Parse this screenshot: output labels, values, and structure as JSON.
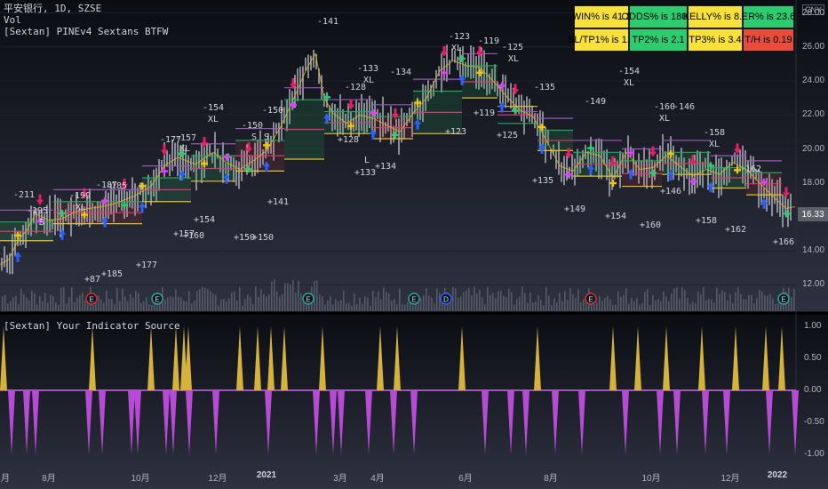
{
  "header": {
    "symbol_line": "平安银行, 1D, SZSE",
    "vol_label": "Vol",
    "strategy_label": "[Sextan] PINEv4 Sextans BTFW",
    "indicator_label": "[Sextan] Your Indicator Source"
  },
  "currency": "CNY",
  "last_price": "16.33",
  "stats": [
    {
      "text": "WIN% is 41.3",
      "color": "#f7e13a"
    },
    {
      "text": "ODDS% is 180.9",
      "color": "#2ecc71"
    },
    {
      "text": "KELLY% is 8.9",
      "color": "#f7e13a"
    },
    {
      "text": "ER% is 23.6",
      "color": "#2ecc71"
    },
    {
      "text": "SL/TP1% is 1.3",
      "color": "#f7e13a"
    },
    {
      "text": "TP2% is 2.1",
      "color": "#2ecc71"
    },
    {
      "text": "TP3% is 3.4",
      "color": "#f7e13a"
    },
    {
      "text": "T/H is 0.19",
      "color": "#e74c3c"
    }
  ],
  "price_axis": [
    "28.00",
    "26.00",
    "24.00",
    "22.00",
    "20.00",
    "18.00",
    "14.00",
    "12.00"
  ],
  "osc_axis": [
    "1.00",
    "0.50",
    "0.00",
    "-0.50",
    "-1.00"
  ],
  "time_axis": [
    {
      "label": "月",
      "bold": false
    },
    {
      "label": "8月",
      "bold": false
    },
    {
      "label": "10月",
      "bold": false
    },
    {
      "label": "12月",
      "bold": false
    },
    {
      "label": "2021",
      "bold": true
    },
    {
      "label": "3月",
      "bold": false
    },
    {
      "label": "4月",
      "bold": false
    },
    {
      "label": "6月",
      "bold": false
    },
    {
      "label": "8月",
      "bold": false
    },
    {
      "label": "10月",
      "bold": false
    },
    {
      "label": "12月",
      "bold": false
    },
    {
      "label": "2022",
      "bold": true
    }
  ],
  "event_badges": [
    "E",
    "E",
    "E",
    "E",
    "D",
    "E",
    "E"
  ],
  "trade_labels": [
    {
      "text": "-211"
    },
    {
      "text": "-195"
    },
    {
      "text": "S"
    },
    {
      "text": "-199"
    },
    {
      "text": "XL"
    },
    {
      "text": "-187"
    },
    {
      "text": "-185"
    },
    {
      "text": "-177"
    },
    {
      "text": "-157"
    },
    {
      "text": "XL"
    },
    {
      "text": "-154"
    },
    {
      "text": "XL"
    },
    {
      "text": "-150"
    },
    {
      "text": "-150"
    },
    {
      "text": "S"
    },
    {
      "text": "-141"
    },
    {
      "text": "-133"
    },
    {
      "text": "XL"
    },
    {
      "text": "-128"
    },
    {
      "text": "-134"
    },
    {
      "text": "-123"
    },
    {
      "text": "XL"
    },
    {
      "text": "-119"
    },
    {
      "text": "-125"
    },
    {
      "text": "XL"
    },
    {
      "text": "-135"
    },
    {
      "text": "-149"
    },
    {
      "text": "-154"
    },
    {
      "text": "XL"
    },
    {
      "text": "-160"
    },
    {
      "text": "XL"
    },
    {
      "text": "-146"
    },
    {
      "text": "-158"
    },
    {
      "text": "XL"
    },
    {
      "text": "-162"
    },
    {
      "text": "+87"
    },
    {
      "text": "+185"
    },
    {
      "text": "+177"
    },
    {
      "text": "+157"
    },
    {
      "text": "+160"
    },
    {
      "text": "+154"
    },
    {
      "text": "+150"
    },
    {
      "text": "+150"
    },
    {
      "text": "+141"
    },
    {
      "text": "+128"
    },
    {
      "text": "+133"
    },
    {
      "text": "+134"
    },
    {
      "text": "+123"
    },
    {
      "text": "+119"
    },
    {
      "text": "+125"
    },
    {
      "text": "+135"
    },
    {
      "text": "+149"
    },
    {
      "text": "+154"
    },
    {
      "text": "+160"
    },
    {
      "text": "+146"
    },
    {
      "text": "+158"
    },
    {
      "text": "+162"
    },
    {
      "text": "+166"
    },
    {
      "text": "L"
    },
    {
      "text": "S"
    }
  ],
  "chart_data": {
    "type": "line",
    "title": "平安银行, 1D, SZSE",
    "y_range": [
      11.5,
      28.5
    ],
    "close_path": [
      [
        0,
        13.2
      ],
      [
        10,
        13.5
      ],
      [
        20,
        14.6
      ],
      [
        30,
        15.2
      ],
      [
        40,
        16.2
      ],
      [
        55,
        15.8
      ],
      [
        70,
        15.9
      ],
      [
        85,
        16.3
      ],
      [
        100,
        16.5
      ],
      [
        115,
        16.6
      ],
      [
        130,
        16.8
      ],
      [
        150,
        17.2
      ],
      [
        170,
        17.8
      ],
      [
        185,
        19.0
      ],
      [
        200,
        19.5
      ],
      [
        220,
        19.1
      ],
      [
        240,
        19.8
      ],
      [
        255,
        19.2
      ],
      [
        270,
        18.8
      ],
      [
        285,
        19.3
      ],
      [
        300,
        19.9
      ],
      [
        315,
        21.2
      ],
      [
        330,
        22.9
      ],
      [
        345,
        24.7
      ],
      [
        355,
        25.6
      ],
      [
        365,
        23.0
      ],
      [
        375,
        22.1
      ],
      [
        390,
        21.5
      ],
      [
        405,
        22.0
      ],
      [
        420,
        21.8
      ],
      [
        435,
        21.4
      ],
      [
        450,
        21.0
      ],
      [
        465,
        22.1
      ],
      [
        480,
        23.0
      ],
      [
        495,
        24.6
      ],
      [
        510,
        25.2
      ],
      [
        525,
        24.9
      ],
      [
        540,
        24.8
      ],
      [
        555,
        24.0
      ],
      [
        570,
        23.1
      ],
      [
        585,
        22.3
      ],
      [
        600,
        21.9
      ],
      [
        615,
        20.5
      ],
      [
        630,
        19.0
      ],
      [
        645,
        18.7
      ],
      [
        660,
        19.8
      ],
      [
        675,
        19.6
      ],
      [
        690,
        18.3
      ],
      [
        705,
        19.8
      ],
      [
        720,
        18.8
      ],
      [
        735,
        18.9
      ],
      [
        750,
        19.6
      ],
      [
        765,
        19.0
      ],
      [
        780,
        18.4
      ],
      [
        795,
        18.8
      ],
      [
        810,
        18.5
      ],
      [
        825,
        19.2
      ],
      [
        840,
        18.8
      ],
      [
        855,
        18.0
      ],
      [
        870,
        17.2
      ],
      [
        885,
        16.5
      ],
      [
        895,
        16.6
      ]
    ],
    "oscillator_range": [
      -1,
      1
    ],
    "long_spikes_x": [
      4,
      104,
      170,
      198,
      207,
      212,
      270,
      290,
      305,
      320,
      363,
      428,
      447,
      520,
      605,
      690,
      718,
      750,
      790,
      828,
      862,
      880
    ],
    "short_spikes_x": [
      13,
      30,
      40,
      100,
      115,
      148,
      155,
      187,
      195,
      213,
      243,
      302,
      356,
      375,
      384,
      415,
      443,
      466,
      546,
      575,
      592,
      625,
      655,
      704,
      743,
      762,
      794,
      818,
      866,
      895
    ]
  }
}
